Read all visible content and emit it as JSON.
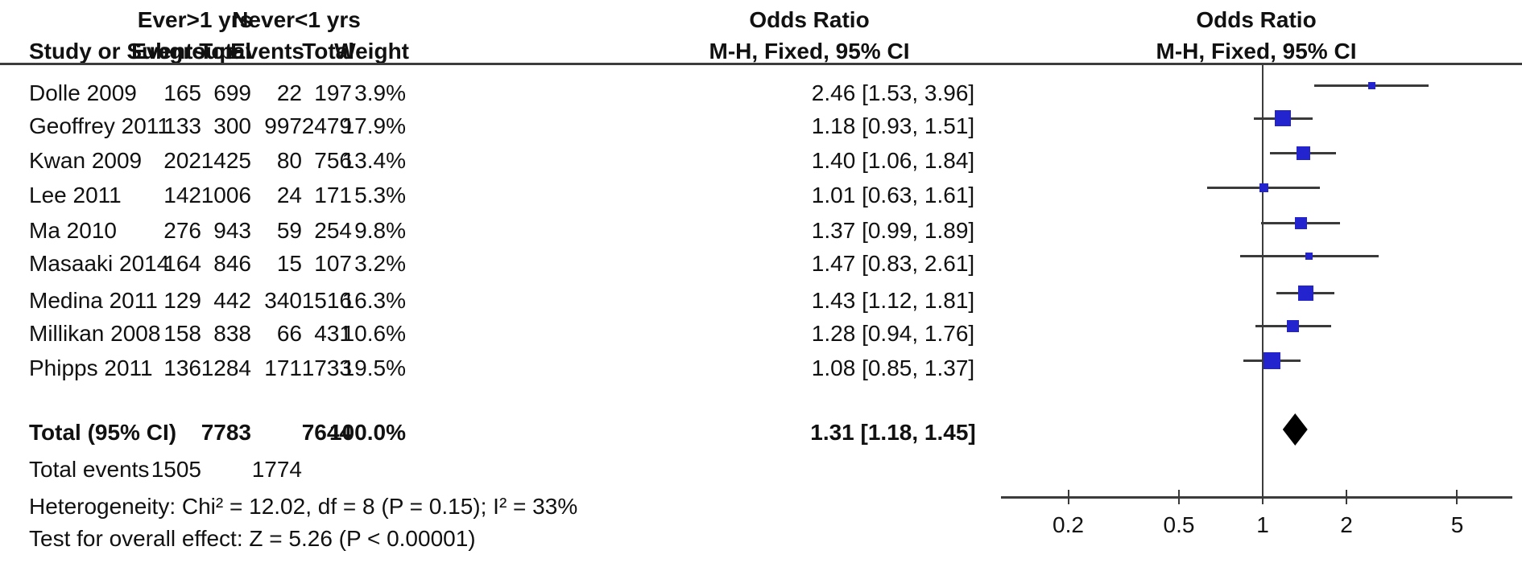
{
  "chart_data": {
    "type": "forest",
    "group1_label": "Ever>1 yrs",
    "group2_label": "Never<1 yrs",
    "or_col_title": "Odds Ratio",
    "or_col_subtitle": "M-H, Fixed, 95% CI",
    "plot_title": "Odds Ratio",
    "plot_subtitle": "M-H, Fixed, 95% CI",
    "col_headers": {
      "study": "Study or Subgroup",
      "events": "Events",
      "total": "Total",
      "events2": "Events",
      "total2": "Total",
      "weight": "Weight"
    },
    "studies": [
      {
        "name": "Dolle 2009",
        "events1": 165,
        "total1": 699,
        "events2": 22,
        "total2": 197,
        "weight": "3.9%",
        "weight_pct": 3.9,
        "or": 2.46,
        "ci_low": 1.53,
        "ci_high": 3.96,
        "or_text": "2.46 [1.53, 3.96]"
      },
      {
        "name": "Geoffrey 2011",
        "events1": 133,
        "total1": 300,
        "events2": 997,
        "total2": 2479,
        "weight": "17.9%",
        "weight_pct": 17.9,
        "or": 1.18,
        "ci_low": 0.93,
        "ci_high": 1.51,
        "or_text": "1.18 [0.93, 1.51]"
      },
      {
        "name": "Kwan 2009",
        "events1": 202,
        "total1": 1425,
        "events2": 80,
        "total2": 756,
        "weight": "13.4%",
        "weight_pct": 13.4,
        "or": 1.4,
        "ci_low": 1.06,
        "ci_high": 1.84,
        "or_text": "1.40 [1.06, 1.84]"
      },
      {
        "name": "Lee 2011",
        "events1": 142,
        "total1": 1006,
        "events2": 24,
        "total2": 171,
        "weight": "5.3%",
        "weight_pct": 5.3,
        "or": 1.01,
        "ci_low": 0.63,
        "ci_high": 1.61,
        "or_text": "1.01 [0.63, 1.61]"
      },
      {
        "name": "Ma 2010",
        "events1": 276,
        "total1": 943,
        "events2": 59,
        "total2": 254,
        "weight": "9.8%",
        "weight_pct": 9.8,
        "or": 1.37,
        "ci_low": 0.99,
        "ci_high": 1.89,
        "or_text": "1.37 [0.99, 1.89]"
      },
      {
        "name": "Masaaki 2014",
        "events1": 164,
        "total1": 846,
        "events2": 15,
        "total2": 107,
        "weight": "3.2%",
        "weight_pct": 3.2,
        "or": 1.47,
        "ci_low": 0.83,
        "ci_high": 2.61,
        "or_text": "1.47 [0.83, 2.61]"
      },
      {
        "name": "Medina 2011",
        "events1": 129,
        "total1": 442,
        "events2": 340,
        "total2": 1516,
        "weight": "16.3%",
        "weight_pct": 16.3,
        "or": 1.43,
        "ci_low": 1.12,
        "ci_high": 1.81,
        "or_text": "1.43 [1.12, 1.81]"
      },
      {
        "name": "Millikan 2008",
        "events1": 158,
        "total1": 838,
        "events2": 66,
        "total2": 431,
        "weight": "10.6%",
        "weight_pct": 10.6,
        "or": 1.28,
        "ci_low": 0.94,
        "ci_high": 1.76,
        "or_text": "1.28 [0.94, 1.76]"
      },
      {
        "name": "Phipps 2011",
        "events1": 136,
        "total1": 1284,
        "events2": 171,
        "total2": 1733,
        "weight": "19.5%",
        "weight_pct": 19.5,
        "or": 1.08,
        "ci_low": 0.85,
        "ci_high": 1.37,
        "or_text": "1.08 [0.85, 1.37]"
      }
    ],
    "total": {
      "label": "Total (95% CI)",
      "total1": 7783,
      "total2": 7644,
      "weight": "100.0%",
      "or": 1.31,
      "ci_low": 1.18,
      "ci_high": 1.45,
      "or_text": "1.31 [1.18, 1.45]"
    },
    "total_events": {
      "label": "Total events",
      "events1": 1505,
      "events2": 1774
    },
    "heterogeneity": "Heterogeneity: Chi² = 12.02, df = 8 (P = 0.15); I² = 33%",
    "overall_effect": "Test for overall effect: Z = 5.26 (P < 0.00001)",
    "axis": {
      "scale": "log",
      "ticks": [
        0.2,
        0.5,
        1,
        2,
        5
      ],
      "tick_labels": [
        "0.2",
        "0.5",
        "1",
        "2",
        "5"
      ]
    },
    "colors": {
      "square": "#2424CE",
      "diamond": "#000000",
      "line": "#3a3a3a",
      "text": "#111111"
    }
  }
}
